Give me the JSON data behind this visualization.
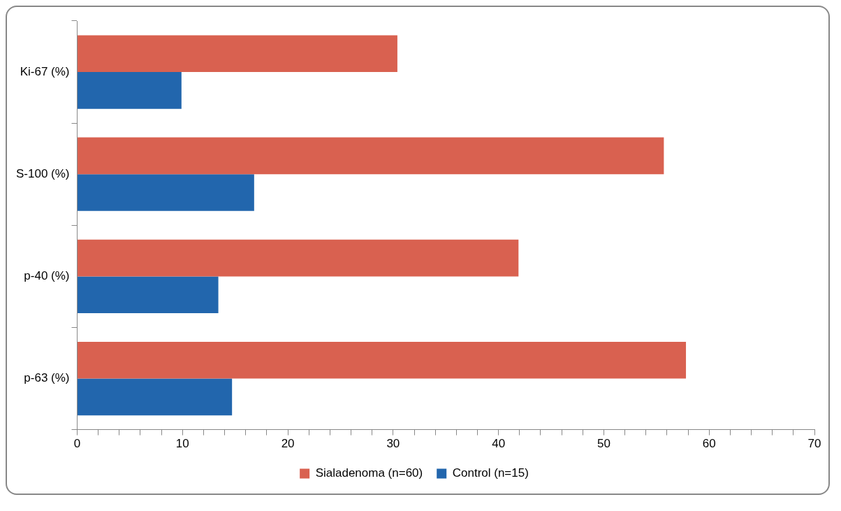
{
  "chart_data": {
    "type": "bar",
    "orientation": "horizontal",
    "categories": [
      "Ki-67 (%)",
      "S-100 (%)",
      "p-40 (%)",
      "p-63 (%)"
    ],
    "series": [
      {
        "name": "Sialadenoma (n=60)",
        "color": "#d96150",
        "values": [
          30.4,
          55.7,
          41.9,
          57.8
        ]
      },
      {
        "name": "Control (n=15)",
        "color": "#2266ad",
        "values": [
          9.9,
          16.8,
          13.4,
          14.7
        ]
      }
    ],
    "xlim": [
      0,
      70
    ],
    "xticks": [
      0,
      {
        "value": 2,
        "label": null
      },
      {
        "value": 4,
        "label": null
      },
      {
        "value": 6,
        "label": null
      },
      {
        "value": 8,
        "label": null
      },
      10,
      {
        "value": 12,
        "label": null
      },
      {
        "value": 14,
        "label": null
      },
      {
        "value": 16,
        "label": null
      },
      {
        "value": 18,
        "label": null
      },
      20,
      {
        "value": 22,
        "label": null
      },
      {
        "value": 24,
        "label": null
      },
      {
        "value": 26,
        "label": null
      },
      {
        "value": 28,
        "label": null
      },
      30,
      {
        "value": 32,
        "label": null
      },
      {
        "value": 34,
        "label": null
      },
      {
        "value": 36,
        "label": null
      },
      {
        "value": 38,
        "label": null
      },
      40,
      {
        "value": 42,
        "label": null
      },
      {
        "value": 44,
        "label": null
      },
      {
        "value": 46,
        "label": null
      },
      {
        "value": 48,
        "label": null
      },
      50,
      {
        "value": 52,
        "label": null
      },
      {
        "value": 54,
        "label": null
      },
      {
        "value": 56,
        "label": null
      },
      {
        "value": 58,
        "label": null
      },
      60,
      {
        "value": 62,
        "label": null
      },
      {
        "value": 64,
        "label": null
      },
      {
        "value": 66,
        "label": null
      },
      {
        "value": 68,
        "label": null
      },
      70
    ],
    "grid": false,
    "legend": "bottom"
  }
}
